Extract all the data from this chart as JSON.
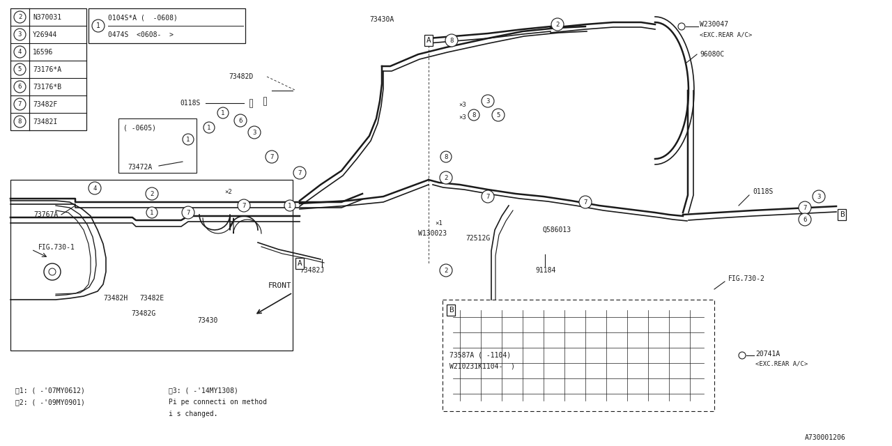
{
  "background_color": "#ffffff",
  "line_color": "#1a1a1a",
  "parts_table": {
    "circled_nums": [
      "2",
      "3",
      "4",
      "5",
      "6",
      "7",
      "8"
    ],
    "part_nums": [
      "N370031",
      "Y26944",
      "16596",
      "73176*A",
      "73176*B",
      "73482F",
      "73482I"
    ]
  },
  "item1_variants": [
    "0104S*A (  -0608)",
    "0474S  <0608-  >"
  ],
  "notes": [
    "×1: ( -'07MY0612)",
    "×2: ( -'09MY0901)",
    "×3: ( -'14MY1308)",
    "Pi pe connecti on method",
    "i s changed."
  ],
  "ref": "A730001206"
}
